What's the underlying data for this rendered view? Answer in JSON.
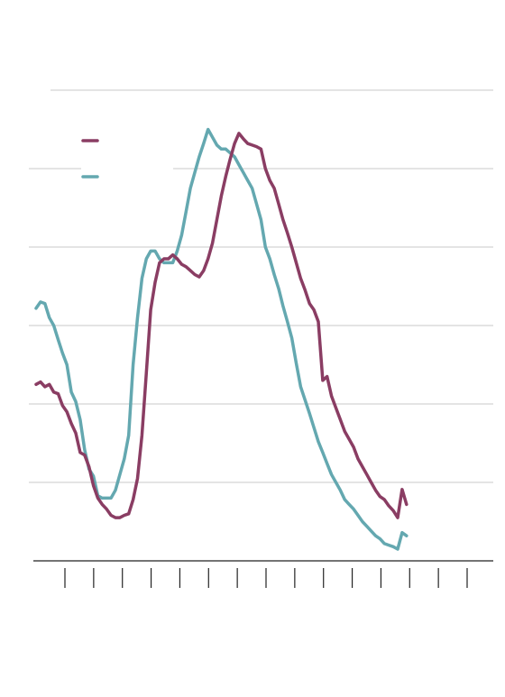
{
  "chart_data": {
    "type": "line",
    "title": "",
    "xlabel": "",
    "ylabel": "",
    "x_range": [
      0,
      100
    ],
    "ylim": [
      0,
      6
    ],
    "y_gridlines": [
      1,
      2,
      3,
      4,
      5,
      6
    ],
    "x_tick_count": 15,
    "grid": "horizontal",
    "legend": {
      "placement": "top-left",
      "entries": [
        "",
        ""
      ]
    },
    "series": [
      {
        "name": "",
        "color": "#8a3d63",
        "points": [
          [
            0,
            2.25
          ],
          [
            1,
            2.28
          ],
          [
            2,
            2.22
          ],
          [
            3,
            2.25
          ],
          [
            4,
            2.15
          ],
          [
            5,
            2.13
          ],
          [
            6,
            1.98
          ],
          [
            7,
            1.9
          ],
          [
            8,
            1.75
          ],
          [
            9,
            1.63
          ],
          [
            10,
            1.38
          ],
          [
            11,
            1.35
          ],
          [
            12,
            1.2
          ],
          [
            13,
            0.96
          ],
          [
            14,
            0.8
          ],
          [
            15,
            0.72
          ],
          [
            16,
            0.66
          ],
          [
            17,
            0.58
          ],
          [
            18,
            0.55
          ],
          [
            19,
            0.55
          ],
          [
            20,
            0.58
          ],
          [
            21,
            0.6
          ],
          [
            22,
            0.78
          ],
          [
            23,
            1.05
          ],
          [
            24,
            1.6
          ],
          [
            25,
            2.4
          ],
          [
            26,
            3.2
          ],
          [
            27,
            3.55
          ],
          [
            28,
            3.8
          ],
          [
            29,
            3.85
          ],
          [
            30,
            3.85
          ],
          [
            31,
            3.9
          ],
          [
            32,
            3.85
          ],
          [
            33,
            3.78
          ],
          [
            34,
            3.75
          ],
          [
            35,
            3.7
          ],
          [
            36,
            3.65
          ],
          [
            37,
            3.62
          ],
          [
            38,
            3.7
          ],
          [
            39,
            3.85
          ],
          [
            40,
            4.05
          ],
          [
            41,
            4.35
          ],
          [
            42,
            4.65
          ],
          [
            43,
            4.9
          ],
          [
            44,
            5.12
          ],
          [
            45,
            5.32
          ],
          [
            46,
            5.45
          ],
          [
            47,
            5.38
          ],
          [
            48,
            5.32
          ],
          [
            49,
            5.3
          ],
          [
            50,
            5.28
          ],
          [
            51,
            5.25
          ],
          [
            52,
            5.0
          ],
          [
            53,
            4.85
          ],
          [
            54,
            4.75
          ],
          [
            55,
            4.55
          ],
          [
            56,
            4.35
          ],
          [
            57,
            4.18
          ],
          [
            58,
            4.0
          ],
          [
            59,
            3.8
          ],
          [
            60,
            3.6
          ],
          [
            61,
            3.45
          ],
          [
            62,
            3.28
          ],
          [
            63,
            3.2
          ],
          [
            64,
            3.05
          ],
          [
            65,
            2.3
          ],
          [
            66,
            2.35
          ],
          [
            67,
            2.1
          ],
          [
            68,
            1.95
          ],
          [
            69,
            1.8
          ],
          [
            70,
            1.65
          ],
          [
            71,
            1.55
          ],
          [
            72,
            1.45
          ],
          [
            73,
            1.3
          ],
          [
            74,
            1.2
          ],
          [
            75,
            1.1
          ],
          [
            76,
            1.0
          ],
          [
            77,
            0.9
          ],
          [
            78,
            0.82
          ],
          [
            79,
            0.78
          ],
          [
            80,
            0.7
          ],
          [
            81,
            0.64
          ],
          [
            82,
            0.55
          ],
          [
            83,
            0.91
          ],
          [
            84,
            0.72
          ]
        ]
      },
      {
        "name": "",
        "color": "#64a8b0",
        "points": [
          [
            0,
            3.22
          ],
          [
            1,
            3.3
          ],
          [
            2,
            3.28
          ],
          [
            3,
            3.1
          ],
          [
            4,
            3.0
          ],
          [
            5,
            2.82
          ],
          [
            6,
            2.65
          ],
          [
            7,
            2.5
          ],
          [
            8,
            2.15
          ],
          [
            9,
            2.03
          ],
          [
            10,
            1.8
          ],
          [
            11,
            1.42
          ],
          [
            12,
            1.17
          ],
          [
            13,
            1.08
          ],
          [
            14,
            0.83
          ],
          [
            15,
            0.8
          ],
          [
            16,
            0.8
          ],
          [
            17,
            0.8
          ],
          [
            18,
            0.9
          ],
          [
            19,
            1.1
          ],
          [
            20,
            1.3
          ],
          [
            21,
            1.6
          ],
          [
            22,
            2.5
          ],
          [
            23,
            3.1
          ],
          [
            24,
            3.6
          ],
          [
            25,
            3.85
          ],
          [
            26,
            3.95
          ],
          [
            27,
            3.95
          ],
          [
            28,
            3.85
          ],
          [
            29,
            3.8
          ],
          [
            30,
            3.8
          ],
          [
            31,
            3.8
          ],
          [
            32,
            3.95
          ],
          [
            33,
            4.15
          ],
          [
            34,
            4.45
          ],
          [
            35,
            4.75
          ],
          [
            36,
            4.95
          ],
          [
            37,
            5.15
          ],
          [
            38,
            5.32
          ],
          [
            39,
            5.5
          ],
          [
            40,
            5.4
          ],
          [
            41,
            5.3
          ],
          [
            42,
            5.25
          ],
          [
            43,
            5.25
          ],
          [
            44,
            5.2
          ],
          [
            45,
            5.15
          ],
          [
            46,
            5.05
          ],
          [
            47,
            4.95
          ],
          [
            48,
            4.85
          ],
          [
            49,
            4.75
          ],
          [
            50,
            4.55
          ],
          [
            51,
            4.35
          ],
          [
            52,
            4.0
          ],
          [
            53,
            3.85
          ],
          [
            54,
            3.65
          ],
          [
            55,
            3.47
          ],
          [
            56,
            3.25
          ],
          [
            57,
            3.05
          ],
          [
            58,
            2.84
          ],
          [
            59,
            2.52
          ],
          [
            60,
            2.22
          ],
          [
            61,
            2.05
          ],
          [
            62,
            1.88
          ],
          [
            63,
            1.7
          ],
          [
            64,
            1.52
          ],
          [
            65,
            1.38
          ],
          [
            66,
            1.24
          ],
          [
            67,
            1.1
          ],
          [
            68,
            1.0
          ],
          [
            69,
            0.9
          ],
          [
            70,
            0.78
          ],
          [
            71,
            0.72
          ],
          [
            72,
            0.66
          ],
          [
            73,
            0.58
          ],
          [
            74,
            0.5
          ],
          [
            75,
            0.44
          ],
          [
            76,
            0.38
          ],
          [
            77,
            0.32
          ],
          [
            78,
            0.28
          ],
          [
            79,
            0.22
          ],
          [
            80,
            0.2
          ],
          [
            81,
            0.18
          ],
          [
            82,
            0.15
          ],
          [
            83,
            0.36
          ],
          [
            84,
            0.32
          ]
        ]
      }
    ]
  }
}
